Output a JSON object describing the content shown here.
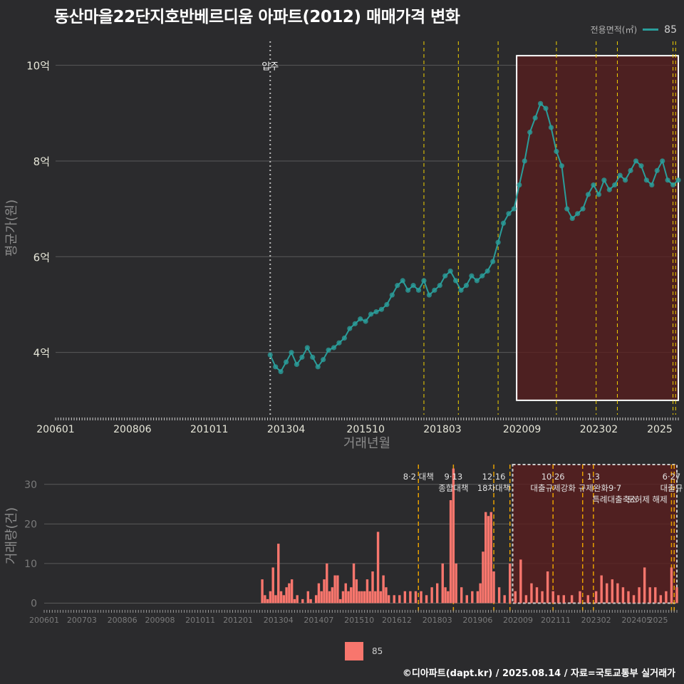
{
  "title": "동산마을22단지호반베르디움 아파트(2012) 매매가격 변화",
  "credit": "©디아파트(dapt.kr) / 2025.08.14 / 자료=국토교통부 실거래가",
  "legend_top": {
    "title": "전용면적(㎡)",
    "value": "85"
  },
  "legend_bottom": {
    "value": "85"
  },
  "colors": {
    "background": "#2b2b2d",
    "price_line": "#2a9d9a",
    "volume_bar": "#f8766d",
    "highlight_fill": "#5a1e1e",
    "policy_line": "#f2d200",
    "gridline": "#5a5a5a"
  },
  "chart_data": [
    {
      "type": "line",
      "xlabel": "거래년월",
      "ylabel": "평균가(원)",
      "x_tick_labels": [
        "200601",
        "200806",
        "201011",
        "201304",
        "201510",
        "201803",
        "202009",
        "202302",
        "2025"
      ],
      "y_ticks": [
        4,
        6,
        8,
        10
      ],
      "y_tick_labels": [
        "4억",
        "6억",
        "8억",
        "10억"
      ],
      "x_range": [
        "2006-01",
        "2025-08"
      ],
      "ylim": [
        2.7,
        10.5
      ],
      "grid": "horizontal",
      "legend_position": "top-right",
      "annotation": {
        "text": "입주",
        "x": "2012-10"
      },
      "policy_lines": [
        "2017-08",
        "2018-09",
        "2019-12",
        "2021-10",
        "2023-01",
        "2023-09",
        "2025-06",
        "2025-07"
      ],
      "highlight_box": {
        "x0": "2020-07",
        "x1": "2025-08",
        "y0": 3.0,
        "y1": 10.2
      },
      "series": [
        {
          "name": "85",
          "x": [
            "2012-10",
            "2012-12",
            "2013-02",
            "2013-04",
            "2013-06",
            "2013-08",
            "2013-10",
            "2013-12",
            "2014-02",
            "2014-04",
            "2014-06",
            "2014-08",
            "2014-10",
            "2014-12",
            "2015-02",
            "2015-04",
            "2015-06",
            "2015-08",
            "2015-10",
            "2015-12",
            "2016-02",
            "2016-04",
            "2016-06",
            "2016-08",
            "2016-10",
            "2016-12",
            "2017-02",
            "2017-04",
            "2017-06",
            "2017-08",
            "2017-10",
            "2017-12",
            "2018-02",
            "2018-04",
            "2018-06",
            "2018-08",
            "2018-10",
            "2018-12",
            "2019-02",
            "2019-04",
            "2019-06",
            "2019-08",
            "2019-10",
            "2019-12",
            "2020-02",
            "2020-04",
            "2020-06",
            "2020-08",
            "2020-10",
            "2020-12",
            "2021-02",
            "2021-04",
            "2021-06",
            "2021-08",
            "2021-10",
            "2021-12",
            "2022-02",
            "2022-04",
            "2022-06",
            "2022-08",
            "2022-10",
            "2022-12",
            "2023-02",
            "2023-04",
            "2023-06",
            "2023-08",
            "2023-10",
            "2023-12",
            "2024-02",
            "2024-04",
            "2024-06",
            "2024-08",
            "2024-10",
            "2024-12",
            "2025-02",
            "2025-04",
            "2025-06",
            "2025-08"
          ],
          "y": [
            3.95,
            3.7,
            3.6,
            3.8,
            4.0,
            3.75,
            3.9,
            4.1,
            3.9,
            3.7,
            3.85,
            4.05,
            4.1,
            4.2,
            4.3,
            4.5,
            4.6,
            4.7,
            4.65,
            4.8,
            4.85,
            4.9,
            5.0,
            5.2,
            5.4,
            5.5,
            5.3,
            5.4,
            5.3,
            5.5,
            5.2,
            5.3,
            5.4,
            5.6,
            5.7,
            5.5,
            5.3,
            5.4,
            5.6,
            5.5,
            5.6,
            5.7,
            5.9,
            6.3,
            6.7,
            6.9,
            7.0,
            7.5,
            8.0,
            8.6,
            8.9,
            9.2,
            9.1,
            8.7,
            8.2,
            7.9,
            7.0,
            6.8,
            6.9,
            7.0,
            7.3,
            7.5,
            7.3,
            7.6,
            7.4,
            7.5,
            7.7,
            7.6,
            7.8,
            8.0,
            7.9,
            7.6,
            7.5,
            7.8,
            8.0,
            7.6,
            7.5,
            7.6
          ]
        }
      ]
    },
    {
      "type": "bar",
      "xlabel": "",
      "ylabel": "거래량(건)",
      "x_tick_labels": [
        "200601",
        "200703",
        "200806",
        "200908",
        "201011",
        "201201",
        "201304",
        "201407",
        "201510",
        "201612",
        "201803",
        "201906",
        "202009",
        "202111",
        "202302",
        "202405",
        "2025"
      ],
      "y_ticks": [
        0,
        10,
        20,
        30
      ],
      "y_tick_labels": [
        "0",
        "10",
        "20",
        "30"
      ],
      "x_range": [
        "2006-01",
        "2025-08"
      ],
      "ylim": [
        -1,
        35
      ],
      "grid": "horizontal",
      "policy_lines": [
        "2017-08",
        "2018-09",
        "2019-12",
        "2020-06",
        "2021-10",
        "2022-09",
        "2023-01",
        "2025-06",
        "2025-07"
      ],
      "highlight_box": {
        "x0": "2020-07",
        "x1": "2025-08",
        "y0": 0,
        "y1": 35
      },
      "policy_labels": [
        {
          "x": "2017-08",
          "lines": [
            "8·2 대책"
          ]
        },
        {
          "x": "2018-09",
          "lines": [
            "9·13",
            "종합대책"
          ]
        },
        {
          "x": "2019-12",
          "lines": [
            "12·16",
            "18차대책"
          ]
        },
        {
          "x": "2021-10",
          "lines": [
            "10·26",
            "대출규제강화"
          ]
        },
        {
          "x": "2023-01",
          "lines": [
            "1·3",
            "규제완화"
          ]
        },
        {
          "x": "2023-09",
          "lines": [
            "",
            "9·7",
            "특례대출축소"
          ]
        },
        {
          "x": "2024-09",
          "lines": [
            "",
            "",
            "토허제 해제"
          ]
        },
        {
          "x": "2025-06",
          "lines": [
            "6·27",
            "대출규"
          ]
        }
      ],
      "series": [
        {
          "name": "85",
          "x": [
            "2012-10",
            "2012-11",
            "2012-12",
            "2013-01",
            "2013-02",
            "2013-03",
            "2013-04",
            "2013-05",
            "2013-06",
            "2013-07",
            "2013-08",
            "2013-09",
            "2013-10",
            "2013-11",
            "2014-01",
            "2014-03",
            "2014-04",
            "2014-06",
            "2014-07",
            "2014-08",
            "2014-09",
            "2014-10",
            "2014-11",
            "2014-12",
            "2015-01",
            "2015-02",
            "2015-03",
            "2015-04",
            "2015-05",
            "2015-06",
            "2015-07",
            "2015-08",
            "2015-09",
            "2015-10",
            "2015-11",
            "2015-12",
            "2016-01",
            "2016-02",
            "2016-03",
            "2016-04",
            "2016-05",
            "2016-06",
            "2016-07",
            "2016-08",
            "2016-09",
            "2016-11",
            "2017-01",
            "2017-03",
            "2017-05",
            "2017-07",
            "2017-09",
            "2017-11",
            "2018-01",
            "2018-03",
            "2018-05",
            "2018-06",
            "2018-07",
            "2018-08",
            "2018-09",
            "2018-10",
            "2018-12",
            "2019-02",
            "2019-04",
            "2019-06",
            "2019-07",
            "2019-08",
            "2019-09",
            "2019-10",
            "2019-11",
            "2019-12",
            "2020-02",
            "2020-04",
            "2020-06",
            "2020-08",
            "2020-10",
            "2020-12",
            "2021-02",
            "2021-04",
            "2021-06",
            "2021-08",
            "2021-10",
            "2021-12",
            "2022-02",
            "2022-05",
            "2022-08",
            "2022-11",
            "2023-02",
            "2023-04",
            "2023-06",
            "2023-08",
            "2023-10",
            "2023-12",
            "2024-02",
            "2024-04",
            "2024-06",
            "2024-08",
            "2024-10",
            "2024-12",
            "2025-02",
            "2025-04",
            "2025-06",
            "2025-08"
          ],
          "values": [
            6,
            2,
            1,
            3,
            9,
            2,
            15,
            3,
            2,
            4,
            5,
            6,
            1,
            2,
            1,
            3,
            1,
            2,
            5,
            3,
            6,
            10,
            3,
            4,
            7,
            7,
            1,
            3,
            5,
            3,
            4,
            10,
            6,
            3,
            3,
            3,
            6,
            3,
            8,
            3,
            18,
            3,
            7,
            4,
            2,
            2,
            2,
            3,
            3,
            3,
            3,
            2,
            4,
            5,
            10,
            4,
            3,
            26,
            34,
            10,
            4,
            2,
            3,
            3,
            5,
            13,
            23,
            22,
            23,
            8,
            4,
            2,
            10,
            3,
            11,
            2,
            5,
            4,
            3,
            8,
            3,
            2,
            2,
            2,
            3,
            2,
            3,
            7,
            5,
            6,
            5,
            4,
            3,
            2,
            4,
            9,
            4,
            4,
            2,
            3,
            9,
            4
          ]
        }
      ]
    }
  ]
}
